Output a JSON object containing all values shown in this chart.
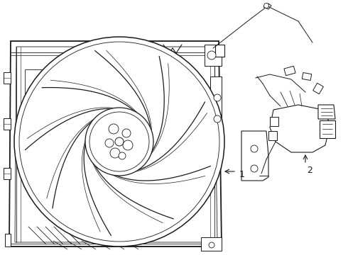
{
  "bg_color": "#ffffff",
  "line_color": "#1a1a1a",
  "fig_width": 4.9,
  "fig_height": 3.6,
  "dpi": 100,
  "label1": "1",
  "label2": "2"
}
